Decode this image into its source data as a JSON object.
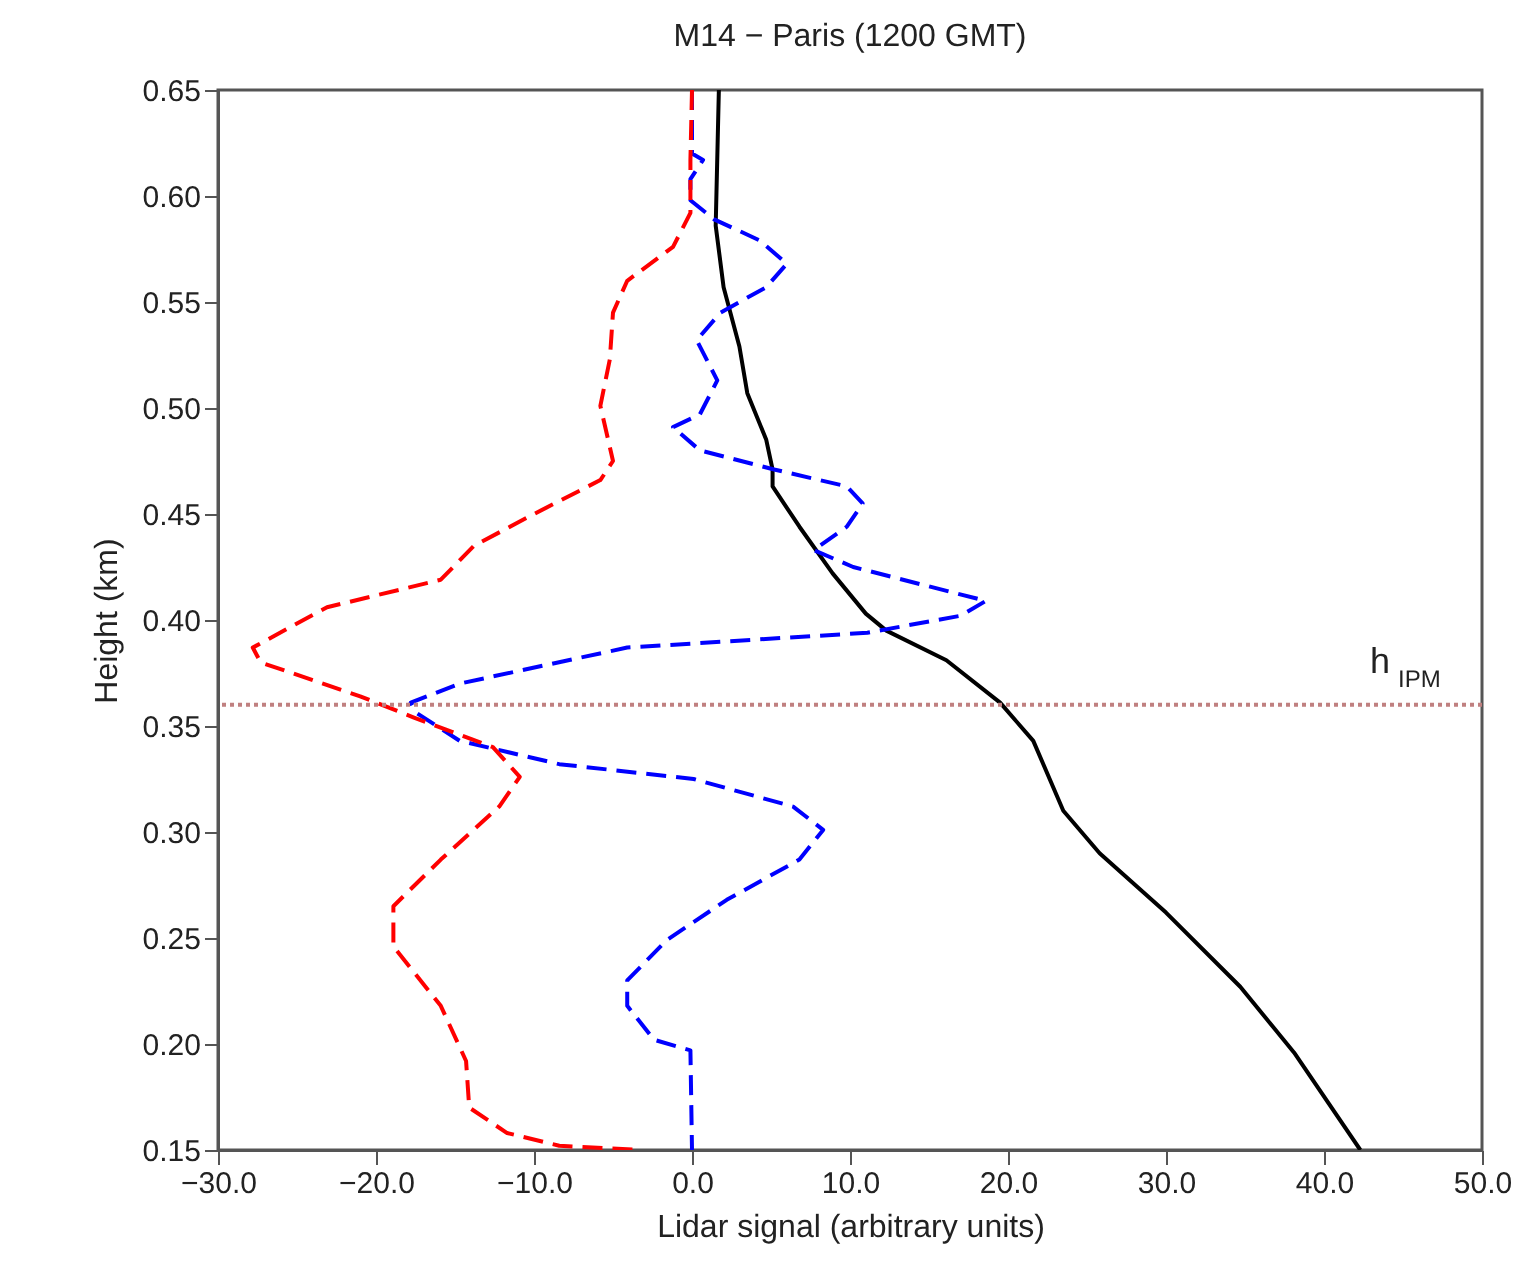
{
  "chart_data": {
    "type": "line",
    "title": "M14 − Paris (1200 GMT)",
    "xlabel": "Lidar signal (arbitrary units)",
    "ylabel": "Height (km)",
    "xlim": [
      -30,
      50
    ],
    "ylim": [
      0.15,
      0.65
    ],
    "xticks": [
      {
        "value": -30,
        "label": "−30.0"
      },
      {
        "value": -20,
        "label": "−20.0"
      },
      {
        "value": -10,
        "label": "−10.0"
      },
      {
        "value": 0,
        "label": "0.0"
      },
      {
        "value": 10,
        "label": "10.0"
      },
      {
        "value": 20,
        "label": "20.0"
      },
      {
        "value": 30,
        "label": "30.0"
      },
      {
        "value": 40,
        "label": "40.0"
      },
      {
        "value": 50,
        "label": "50.0"
      }
    ],
    "yticks": [
      {
        "value": 0.15,
        "label": "0.15"
      },
      {
        "value": 0.2,
        "label": "0.20"
      },
      {
        "value": 0.25,
        "label": "0.25"
      },
      {
        "value": 0.3,
        "label": "0.30"
      },
      {
        "value": 0.35,
        "label": "0.35"
      },
      {
        "value": 0.4,
        "label": "0.40"
      },
      {
        "value": 0.45,
        "label": "0.45"
      },
      {
        "value": 0.5,
        "label": "0.50"
      },
      {
        "value": 0.55,
        "label": "0.55"
      },
      {
        "value": 0.6,
        "label": "0.60"
      },
      {
        "value": 0.65,
        "label": "0.65"
      }
    ],
    "grid": false,
    "legend": false,
    "series": [
      {
        "color": "#000000",
        "line_style": "solid",
        "x": [
          1.7,
          1.5,
          2.0,
          3.0,
          3.5,
          4.7,
          5.1,
          5.1,
          6.8,
          8.9,
          11.0,
          12.3,
          16.1,
          19.5,
          21.6,
          23.5,
          25.8,
          30.0,
          34.7,
          38.1,
          42.3
        ],
        "values": [
          0.65,
          0.586,
          0.557,
          0.529,
          0.507,
          0.485,
          0.471,
          0.463,
          0.444,
          0.422,
          0.403,
          0.395,
          0.381,
          0.361,
          0.343,
          0.31,
          0.29,
          0.262,
          0.227,
          0.196,
          0.15
        ]
      },
      {
        "color": "#0000ff",
        "line_style": "dashed",
        "x": [
          0,
          0,
          0.7,
          -0.1,
          -0.1,
          1.4,
          4.3,
          6.0,
          4.7,
          1.8,
          0.3,
          1.6,
          0.5,
          -1.2,
          0.5,
          5.2,
          9.8,
          10.8,
          9.8,
          7.7,
          10.2,
          18.6,
          17.0,
          11.1,
          -4.1,
          -14.7,
          -17.8,
          -17.4,
          -14.7,
          -8.4,
          0.1,
          6.4,
          8.3,
          6.8,
          2.2,
          -1.6,
          -4.1,
          -4.1,
          -2.4,
          -0.1,
          0
        ],
        "values": [
          0.65,
          0.62,
          0.617,
          0.608,
          0.598,
          0.589,
          0.579,
          0.568,
          0.557,
          0.545,
          0.532,
          0.513,
          0.497,
          0.491,
          0.48,
          0.471,
          0.463,
          0.455,
          0.444,
          0.433,
          0.425,
          0.409,
          0.402,
          0.394,
          0.387,
          0.37,
          0.361,
          0.356,
          0.343,
          0.332,
          0.325,
          0.312,
          0.301,
          0.287,
          0.268,
          0.249,
          0.23,
          0.218,
          0.202,
          0.197,
          0.15
        ]
      },
      {
        "color": "#ff0000",
        "line_style": "dashed",
        "x": [
          0,
          -0.1,
          -0.1,
          -1.2,
          -4.1,
          -5.0,
          -5.2,
          -5.8,
          -5.0,
          -5.8,
          -10.0,
          -13.8,
          -15.9,
          -23.1,
          -27.8,
          -27.3,
          -21.0,
          -17.6,
          -12.6,
          -10.9,
          -12.2,
          -15.9,
          -18.9,
          -18.9,
          -15.9,
          -14.3,
          -14.1,
          -11.7,
          -8.4,
          -3.3
        ],
        "values": [
          0.65,
          0.617,
          0.592,
          0.576,
          0.56,
          0.545,
          0.523,
          0.501,
          0.475,
          0.466,
          0.45,
          0.435,
          0.419,
          0.406,
          0.387,
          0.38,
          0.364,
          0.354,
          0.34,
          0.326,
          0.312,
          0.287,
          0.265,
          0.246,
          0.218,
          0.192,
          0.17,
          0.158,
          0.152,
          0.15
        ]
      }
    ],
    "ref_lines": [
      {
        "axis": "y",
        "value": 0.36,
        "label": "h$_{IPM}$",
        "color": "#c08080",
        "line_style": "dotted"
      }
    ]
  }
}
